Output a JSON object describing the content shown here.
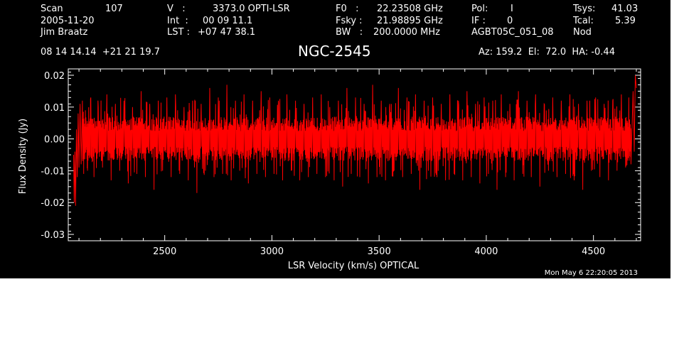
{
  "header": {
    "scan_label": "Scan",
    "scan_value": "107",
    "date": "2005-11-20",
    "observer": "Jim Braatz",
    "v_label": "V   :",
    "v_value": "3373.0 OPTI-LSR",
    "int_label": "Int  :",
    "int_value": "00 09 11.1",
    "lst_label": "LST :",
    "lst_value": "+07 47 38.1",
    "f0_label": "F0   :",
    "f0_value": "22.23508 GHz",
    "fsky_label": "Fsky :",
    "fsky_value": "21.98895 GHz",
    "bw_label": "BW   :",
    "bw_value": "200.0000 MHz",
    "pol_label": "Pol:",
    "pol_value": "I",
    "if_label": "IF :",
    "if_value": "0",
    "project": "AGBT05C_051_08",
    "tsys_label": "Tsys:",
    "tsys_value": "41.03",
    "tcal_label": "Tcal:",
    "tcal_value": "5.39",
    "mode": "Nod",
    "coords": "08 14 14.14  +21 21 19.7",
    "az_el_ha": "Az: 159.2  El:  72.0  HA: -0.44"
  },
  "footer": {
    "timestamp": "Mon May  6 22:20:05 2013"
  },
  "chart_data": {
    "type": "line",
    "title": "NGC-2545",
    "xlabel": "LSR Velocity (km/s) OPTICAL",
    "ylabel": "Flux Density (Jy)",
    "xlim": [
      2050,
      4720
    ],
    "ylim": [
      -0.032,
      0.022
    ],
    "xticks": [
      2500,
      3000,
      3500,
      4000,
      4500
    ],
    "yticks": [
      "0.02",
      "0.01",
      "0.00",
      "-0.01",
      "-0.02",
      "-0.03"
    ],
    "ytick_values": [
      0.02,
      0.01,
      0.0,
      -0.01,
      -0.02,
      -0.03
    ],
    "series_color": "#ff0000",
    "series": [
      {
        "x": [
          2075,
          2078,
          2081,
          2084,
          2088,
          2092,
          2096,
          2100,
          2105,
          2110,
          2116,
          2122,
          2130,
          2140,
          2155,
          2170,
          2190,
          2210,
          2230,
          2250,
          2270,
          2290,
          2310,
          2330,
          2350,
          2370,
          2390,
          2410,
          2430,
          2450,
          2470,
          2490,
          2510,
          2530,
          2550,
          2570,
          2590,
          2610,
          2630,
          2650,
          2670,
          2690,
          2710,
          2730,
          2750,
          2770,
          2790,
          2810,
          2830,
          2850,
          2870,
          2890,
          2910,
          2930,
          2950,
          2970,
          2990,
          3010,
          3030,
          3050,
          3070,
          3090,
          3110,
          3130,
          3150,
          3170,
          3190,
          3210,
          3230,
          3250,
          3270,
          3290,
          3310,
          3330,
          3350,
          3370,
          3390,
          3410,
          3430,
          3450,
          3470,
          3490,
          3510,
          3530,
          3550,
          3570,
          3590,
          3610,
          3630,
          3650,
          3670,
          3690,
          3710,
          3730,
          3750,
          3770,
          3790,
          3810,
          3830,
          3850,
          3870,
          3890,
          3910,
          3930,
          3950,
          3970,
          3990,
          4010,
          4030,
          4050,
          4070,
          4090,
          4110,
          4130,
          4150,
          4170,
          4190,
          4210,
          4230,
          4250,
          4270,
          4290,
          4310,
          4330,
          4350,
          4370,
          4390,
          4410,
          4430,
          4450,
          4470,
          4490,
          4510,
          4530,
          4550,
          4570,
          4590,
          4610,
          4630,
          4650,
          4665,
          4675,
          4685,
          4690,
          4695,
          4700
        ],
        "y": [
          -0.005,
          -0.02,
          -0.004,
          -0.021,
          0.003,
          -0.012,
          0.008,
          -0.009,
          0.011,
          -0.008,
          0.012,
          -0.011,
          0.009,
          -0.01,
          0.013,
          -0.012,
          0.01,
          -0.009,
          0.014,
          -0.013,
          0.011,
          -0.01,
          0.012,
          -0.014,
          0.01,
          -0.011,
          0.015,
          -0.012,
          0.011,
          -0.016,
          0.012,
          -0.01,
          0.013,
          -0.012,
          0.014,
          -0.011,
          0.01,
          -0.013,
          0.012,
          -0.017,
          0.011,
          -0.01,
          0.016,
          -0.012,
          0.013,
          -0.011,
          0.017,
          -0.013,
          0.012,
          -0.01,
          0.014,
          -0.014,
          0.012,
          -0.011,
          0.015,
          -0.012,
          0.013,
          -0.011,
          0.012,
          -0.013,
          0.014,
          -0.01,
          0.012,
          -0.013,
          0.011,
          -0.012,
          0.013,
          -0.011,
          0.014,
          -0.012,
          0.01,
          -0.013,
          0.012,
          -0.015,
          0.016,
          -0.011,
          0.013,
          -0.012,
          0.011,
          -0.014,
          0.017,
          -0.012,
          0.012,
          -0.013,
          0.011,
          -0.01,
          0.016,
          -0.012,
          0.013,
          -0.011,
          0.014,
          -0.016,
          0.012,
          -0.01,
          0.013,
          -0.012,
          0.011,
          -0.013,
          0.014,
          -0.011,
          0.012,
          -0.013,
          0.015,
          -0.012,
          0.011,
          -0.014,
          0.013,
          -0.011,
          0.012,
          -0.016,
          0.014,
          -0.012,
          0.011,
          -0.013,
          0.015,
          -0.011,
          0.012,
          -0.012,
          0.014,
          -0.015,
          0.011,
          -0.01,
          0.013,
          -0.012,
          0.012,
          -0.011,
          0.014,
          -0.013,
          0.011,
          -0.016,
          0.012,
          -0.01,
          0.013,
          -0.012,
          0.011,
          -0.013,
          0.012,
          -0.01,
          0.014,
          -0.009,
          0.013,
          -0.008,
          0.015,
          -0.004,
          0.02,
          0.016
        ]
      }
    ]
  }
}
